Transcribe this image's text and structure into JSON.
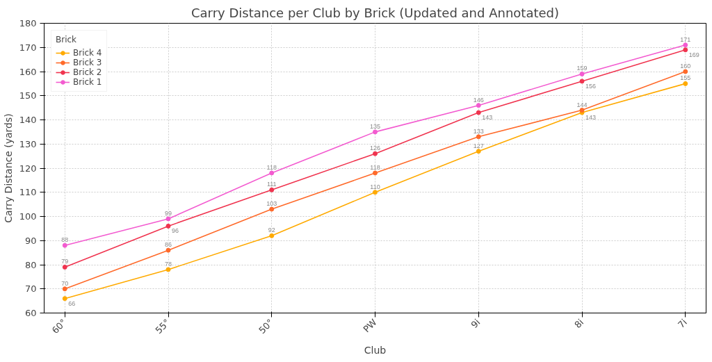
{
  "chart_data": {
    "type": "line",
    "title": "Carry Distance per Club by Brick (Updated and Annotated)",
    "xlabel": "Club",
    "ylabel": "Carry Distance (yards)",
    "legend_title": "Brick",
    "categories": [
      "60°",
      "55°",
      "50°",
      "PW",
      "9i",
      "8i",
      "7i"
    ],
    "series": [
      {
        "name": "Brick 4",
        "color": "#ffaa00",
        "values": [
          66,
          78,
          92,
          110,
          127,
          143,
          155
        ]
      },
      {
        "name": "Brick 3",
        "color": "#ff6a2a",
        "values": [
          70,
          86,
          103,
          118,
          133,
          144,
          160
        ]
      },
      {
        "name": "Brick 2",
        "color": "#f0344f",
        "values": [
          79,
          96,
          111,
          126,
          143,
          156,
          169
        ]
      },
      {
        "name": "Brick 1",
        "color": "#f35bd0",
        "values": [
          88,
          99,
          118,
          135,
          146,
          159,
          171
        ]
      }
    ],
    "ylim": [
      60,
      180
    ],
    "yticks": [
      60,
      70,
      80,
      90,
      100,
      110,
      120,
      130,
      140,
      150,
      160,
      170,
      180
    ],
    "grid": true,
    "legend": "top left",
    "marker": "circle",
    "line_style": "solid",
    "data_labels": true
  }
}
